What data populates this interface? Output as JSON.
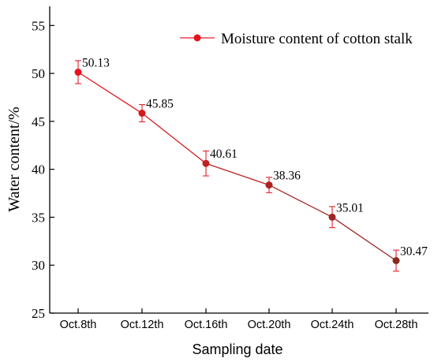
{
  "chart_data": {
    "type": "line",
    "xlabel": "Sampling date",
    "ylabel": "Water content/%",
    "categories": [
      "Oct.8th",
      "Oct.12th",
      "Oct.16th",
      "Oct.20th",
      "Oct.24th",
      "Oct.28th"
    ],
    "ylim": [
      25,
      57
    ],
    "yticks": [
      25,
      30,
      35,
      40,
      45,
      50,
      55
    ],
    "grid": false,
    "legend_position": "top-right",
    "series": [
      {
        "name": "Moisture content of cotton stalk",
        "values": [
          50.13,
          45.85,
          40.61,
          38.36,
          35.01,
          30.47
        ],
        "error": [
          1.2,
          0.9,
          1.3,
          0.8,
          1.1,
          1.1
        ],
        "data_labels": [
          "50.13",
          "45.85",
          "40.61",
          "38.36",
          "35.01",
          "30.47"
        ],
        "color": "#e8202a",
        "marker_colors": [
          "#e8131d",
          "#d41a1f",
          "#c01f22",
          "#ab2322",
          "#9a2620",
          "#8a2a1e"
        ]
      }
    ]
  }
}
